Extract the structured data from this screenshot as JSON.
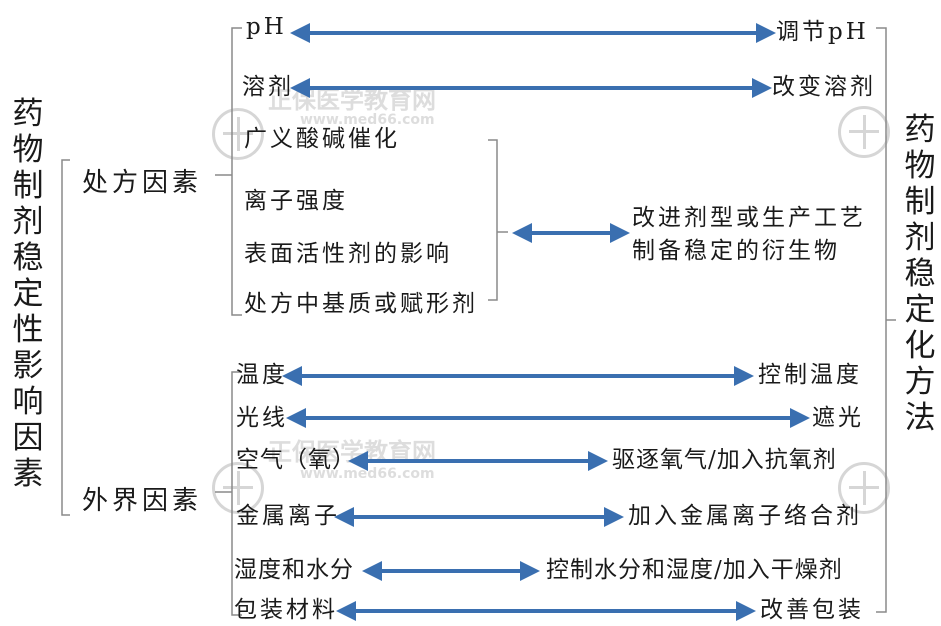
{
  "left_title": "药物制剂稳定性影响因素",
  "right_title": "药物制剂稳定化方法",
  "categories": {
    "prescription": "处方因素",
    "external": "外界因素"
  },
  "prescription_items": [
    {
      "factor": "pH",
      "method": "调节pH"
    },
    {
      "factor": "溶剂",
      "method": "改变溶剂"
    }
  ],
  "group_factors": [
    "广义酸碱催化",
    "离子强度",
    "表面活性剂的影响",
    "处方中基质或赋形剂"
  ],
  "group_method": [
    "改进剂型或生产工艺",
    "制备稳定的衍生物"
  ],
  "external_items": [
    {
      "factor": "温度",
      "method": "控制温度"
    },
    {
      "factor": "光线",
      "method": "遮光"
    },
    {
      "factor": "空气（氧）",
      "method": "驱逐氧气/加入抗氧剂"
    },
    {
      "factor": "金属离子",
      "method": "加入金属离子络合剂"
    },
    {
      "factor": "湿度和水分",
      "method": "控制水分和湿度/加入干燥剂"
    },
    {
      "factor": "包装材料",
      "method": "改善包装"
    }
  ],
  "watermark": {
    "brand": "正保医学教育网",
    "url": "www.med66.com"
  },
  "colors": {
    "arrow": "#3a6fb0",
    "bracket": "#8a8a8a"
  }
}
